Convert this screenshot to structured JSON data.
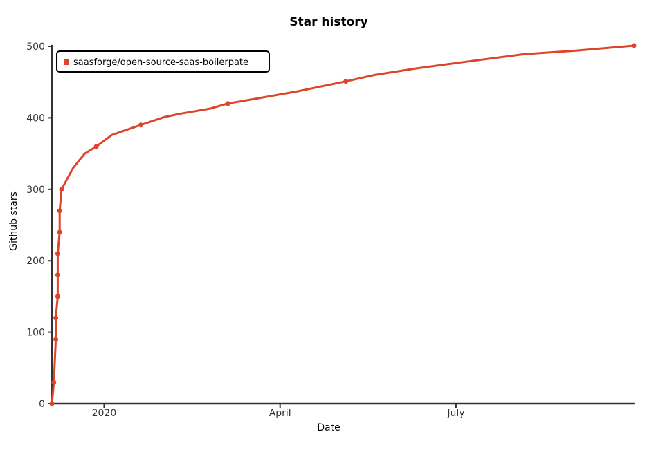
{
  "chart_data": {
    "type": "line",
    "title": "Star history",
    "xlabel": "Date",
    "ylabel": "Github stars",
    "x_ticks": [
      "2020",
      "April",
      "July"
    ],
    "y_ticks": [
      "0",
      "100",
      "200",
      "300",
      "400",
      "500"
    ],
    "ylim": [
      0,
      500
    ],
    "xlim": [
      "2019-12-05",
      "2020-10-01"
    ],
    "grid": false,
    "legend_position": "top-left",
    "series": [
      {
        "name": "saasforge/open-source-saas-boilerpate",
        "color": "#dd4528",
        "points": [
          {
            "x": "2019-12-05",
            "y": 0
          },
          {
            "x": "2019-12-06",
            "y": 30
          },
          {
            "x": "2019-12-07",
            "y": 90
          },
          {
            "x": "2019-12-07",
            "y": 120
          },
          {
            "x": "2019-12-08",
            "y": 150
          },
          {
            "x": "2019-12-08",
            "y": 180
          },
          {
            "x": "2019-12-08",
            "y": 210
          },
          {
            "x": "2019-12-09",
            "y": 240
          },
          {
            "x": "2019-12-09",
            "y": 270
          },
          {
            "x": "2019-12-10",
            "y": 300
          },
          {
            "x": "2019-12-11",
            "y": 305
          },
          {
            "x": "2019-12-16",
            "y": 330
          },
          {
            "x": "2019-12-22",
            "y": 350
          },
          {
            "x": "2019-12-28",
            "y": 360
          },
          {
            "x": "2020-01-05",
            "y": 376
          },
          {
            "x": "2020-01-20",
            "y": 390
          },
          {
            "x": "2020-02-01",
            "y": 401
          },
          {
            "x": "2020-02-10",
            "y": 406
          },
          {
            "x": "2020-02-25",
            "y": 413
          },
          {
            "x": "2020-03-05",
            "y": 420
          },
          {
            "x": "2020-03-20",
            "y": 427
          },
          {
            "x": "2020-04-10",
            "y": 437
          },
          {
            "x": "2020-05-05",
            "y": 451
          },
          {
            "x": "2020-05-20",
            "y": 460
          },
          {
            "x": "2020-06-10",
            "y": 469
          },
          {
            "x": "2020-07-05",
            "y": 478
          },
          {
            "x": "2020-08-05",
            "y": 489
          },
          {
            "x": "2020-09-01",
            "y": 494
          },
          {
            "x": "2020-10-01",
            "y": 501
          }
        ],
        "marker_indices": [
          0,
          1,
          2,
          3,
          4,
          5,
          6,
          7,
          8,
          9,
          13,
          15,
          19,
          22,
          28
        ]
      }
    ]
  }
}
